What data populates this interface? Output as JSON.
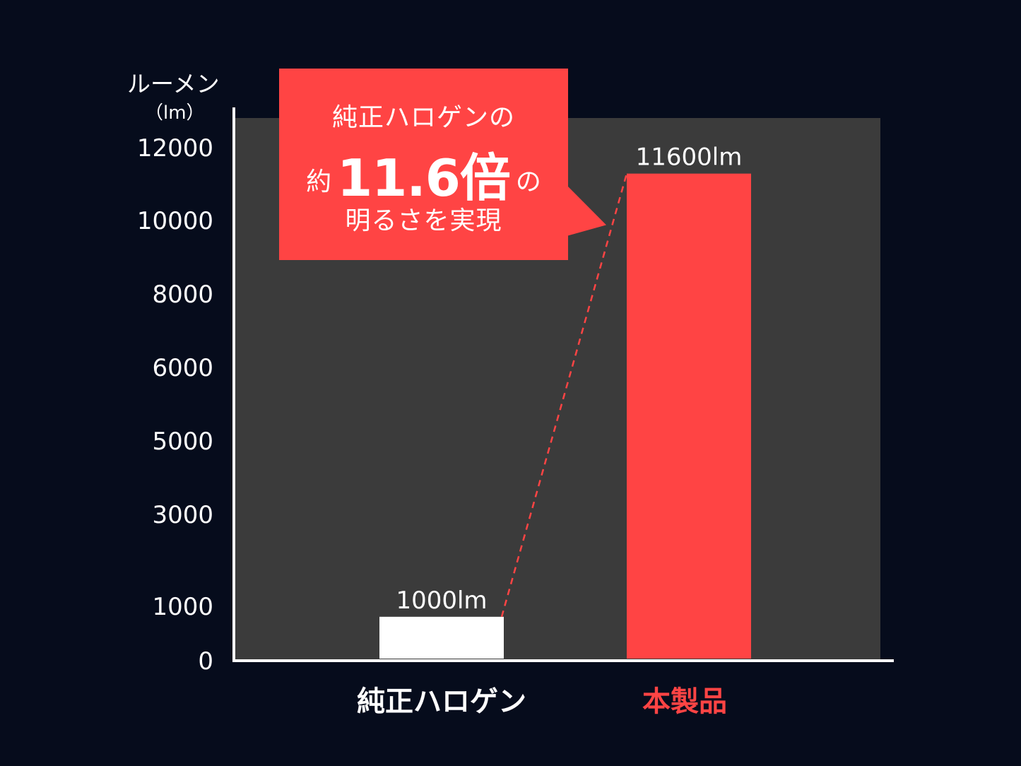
{
  "chart_data": {
    "type": "bar",
    "ylabel": "ルーメン",
    "yunit": "（lm）",
    "categories": [
      "純正ハロゲン",
      "本製品"
    ],
    "values": [
      1000,
      11600
    ],
    "value_labels": [
      "1000lm",
      "11600lm"
    ],
    "ytick_labels": [
      "0",
      "1000",
      "3000",
      "5000",
      "6000",
      "8000",
      "10000",
      "12000"
    ],
    "colors": [
      "#ffffff",
      "#ff4444"
    ],
    "category_colors": [
      "#ffffff",
      "#ff4444"
    ],
    "plot_background": "#3b3b3b",
    "page_background": "#060c1c",
    "grid": false,
    "legend": "none"
  },
  "callout": {
    "line1": "純正ハロゲンの",
    "prefix": "約",
    "highlight": "11.6倍",
    "suffix": "の",
    "line3": "明るさを実現",
    "color": "#ff4444"
  }
}
